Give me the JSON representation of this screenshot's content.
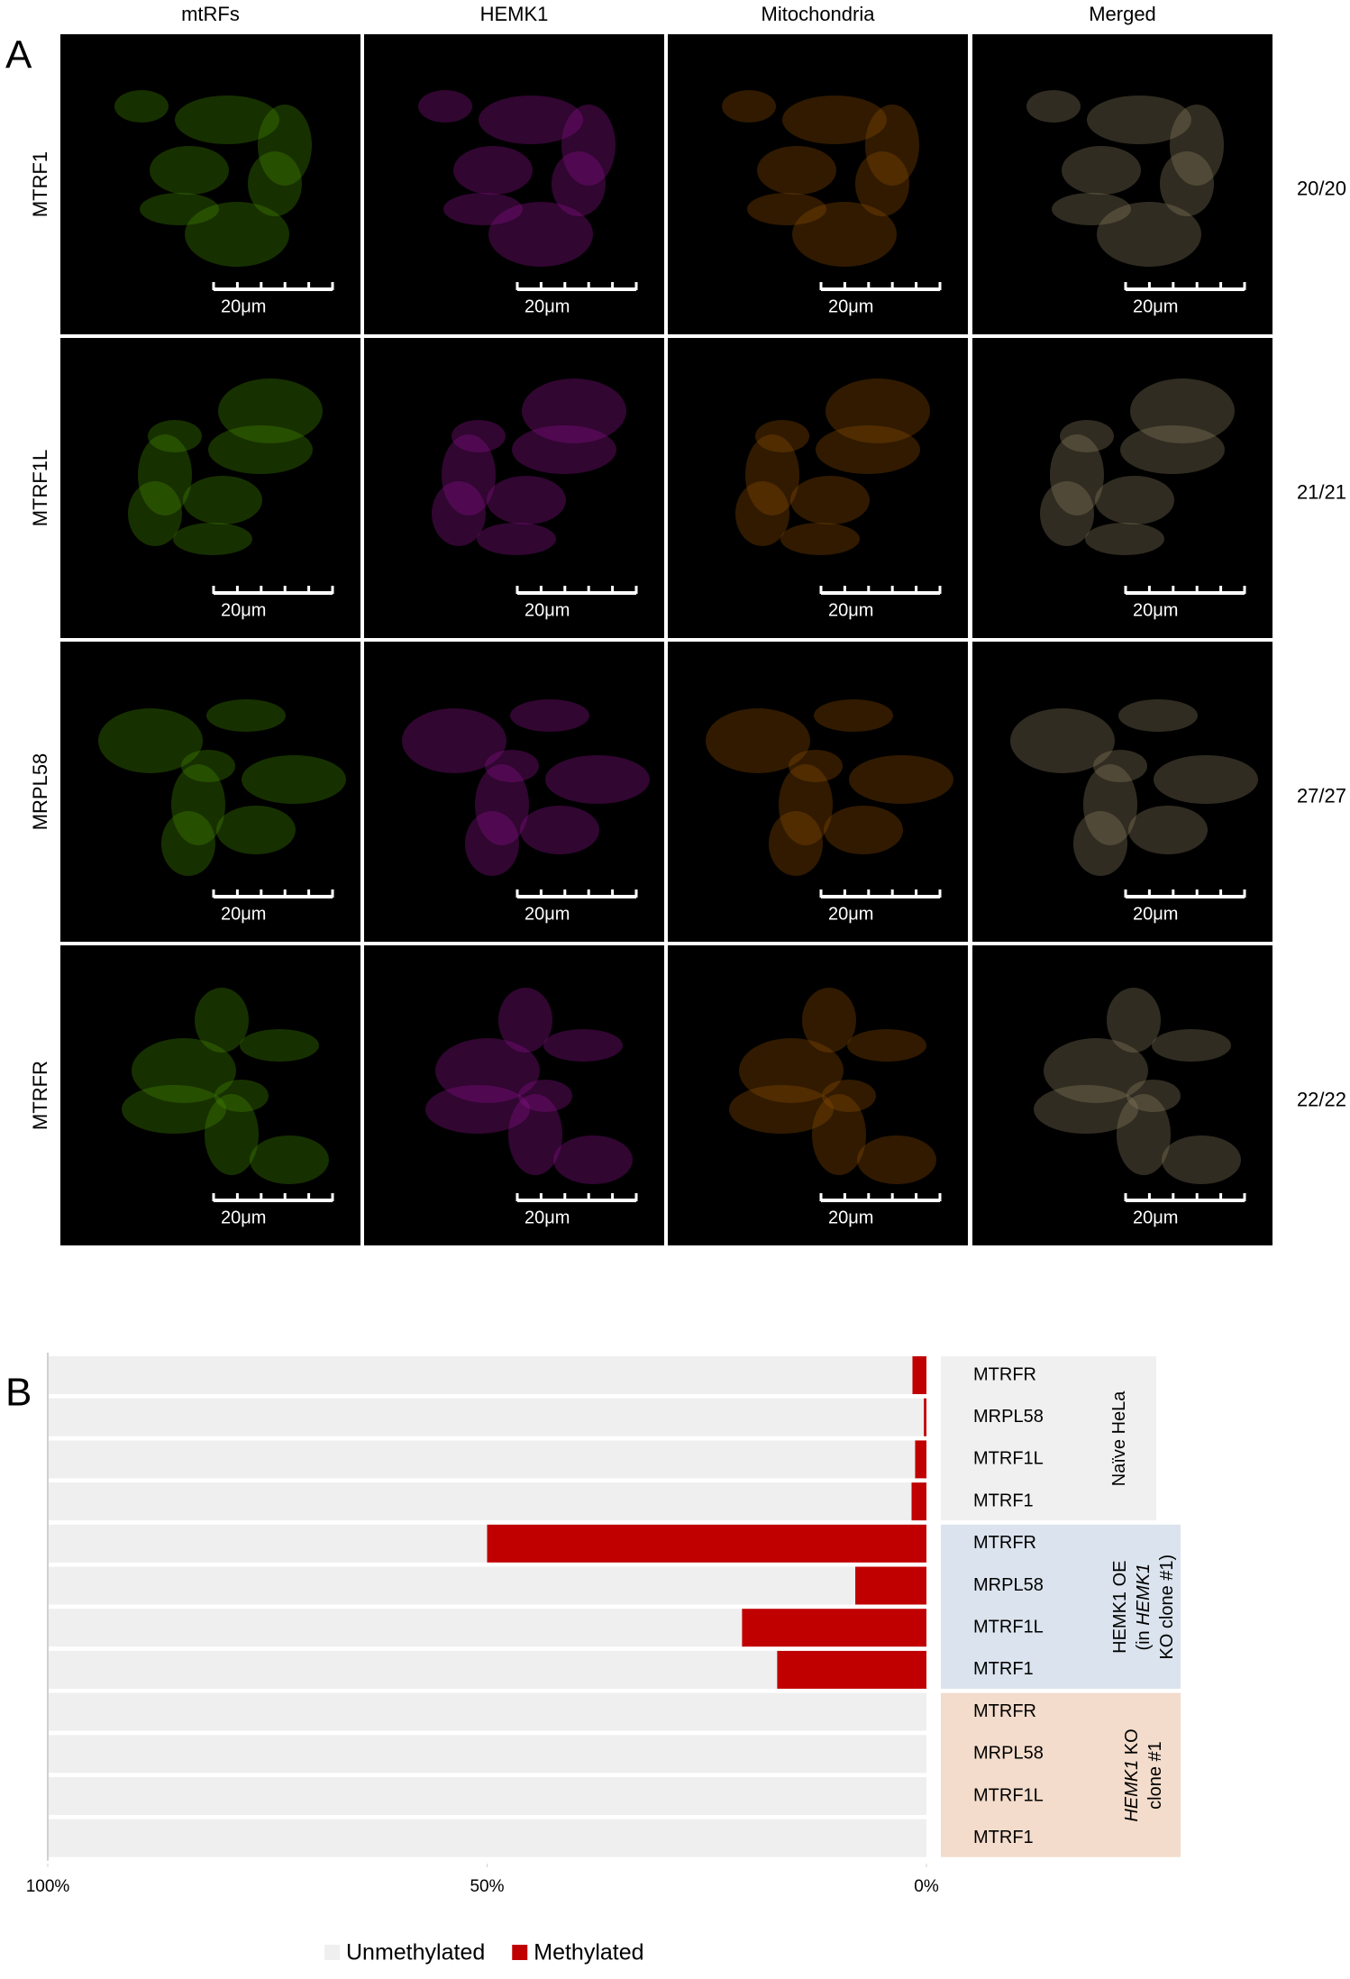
{
  "panel_a": {
    "label": "A",
    "columns": [
      "mtRFs",
      "HEMK1",
      "Mitochondria",
      "Merged"
    ],
    "rows": [
      {
        "label": "MTRF1",
        "count": "20/20"
      },
      {
        "label": "MTRF1L",
        "count": "21/21"
      },
      {
        "label": "MRPL58",
        "count": "27/27"
      },
      {
        "label": "MTRFR",
        "count": "22/22"
      }
    ],
    "scale_bar_label": "20μm"
  },
  "panel_b": {
    "label": "B"
  },
  "chart_data": {
    "type": "stacked_barh",
    "categories": [
      "MTRFR",
      "MRPL58",
      "MTRF1L",
      "MTRF1",
      "MTRFR",
      "MRPL58",
      "MTRF1L",
      "MTRF1",
      "MTRFR",
      "MRPL58",
      "MTRF1L",
      "MTRF1"
    ],
    "groups": [
      {
        "lines": [
          [
            {
              "text": "Naïve HeLa"
            }
          ]
        ],
        "color": "#f0f0f0"
      },
      {
        "lines": [
          [
            {
              "text": "HEMK1 OE"
            }
          ],
          [
            {
              "text": "(in "
            },
            {
              "text": "HEMK1",
              "italic": true
            }
          ],
          [
            {
              "text": "KO clone #1)"
            }
          ]
        ],
        "color": "#dbe3ee"
      },
      {
        "lines": [
          [
            {
              "text": "HEMK1",
              "italic": true
            },
            {
              "text": " KO"
            }
          ],
          [
            {
              "text": "clone #1"
            }
          ]
        ],
        "color": "#f3dccb"
      }
    ],
    "series": [
      {
        "name": "Methylated",
        "color": "#c00000",
        "values": [
          1.6,
          0.3,
          1.3,
          1.7,
          50,
          8.1,
          21,
          17,
          0,
          0,
          0,
          0
        ]
      },
      {
        "name": "Unmethylated",
        "color": "#efefef",
        "values": [
          98.4,
          99.7,
          98.7,
          98.3,
          50,
          91.9,
          79,
          83,
          100,
          100,
          100,
          100
        ]
      }
    ],
    "xlim": [
      100,
      0
    ],
    "xticks": [
      {
        "value": 100,
        "label": "100%"
      },
      {
        "value": 50,
        "label": "50%"
      },
      {
        "value": 0,
        "label": "0%"
      }
    ]
  }
}
